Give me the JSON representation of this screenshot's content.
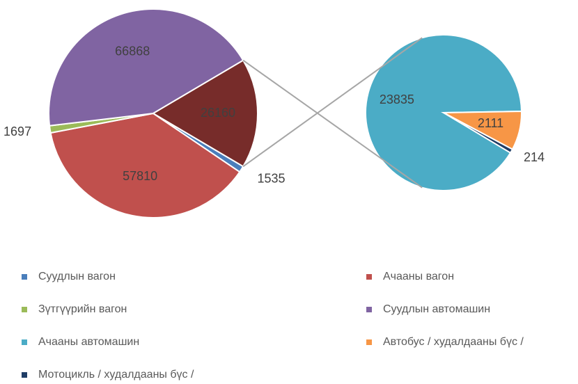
{
  "chart_data": {
    "type": "pie_of_pie",
    "categories": [
      "Суудлын вагон",
      "Ачааны вагон",
      "Зүтгүүрийн вагон",
      "Суудлын автомашин",
      "Ачааны автомашин",
      "Автобус / худалдааны бүс /",
      "Мотоцикль / худалдааны бүс /"
    ],
    "values": [
      1535,
      57810,
      1697,
      66868,
      23835,
      2111,
      214
    ],
    "colors": [
      "#4a7ebb",
      "#c0504d",
      "#9bbb59",
      "#8064a2",
      "#4bacc6",
      "#f79646",
      "#1f3d66"
    ],
    "second_plot_values": 3,
    "other_value": 26160,
    "other_color": "#772c2a"
  }
}
